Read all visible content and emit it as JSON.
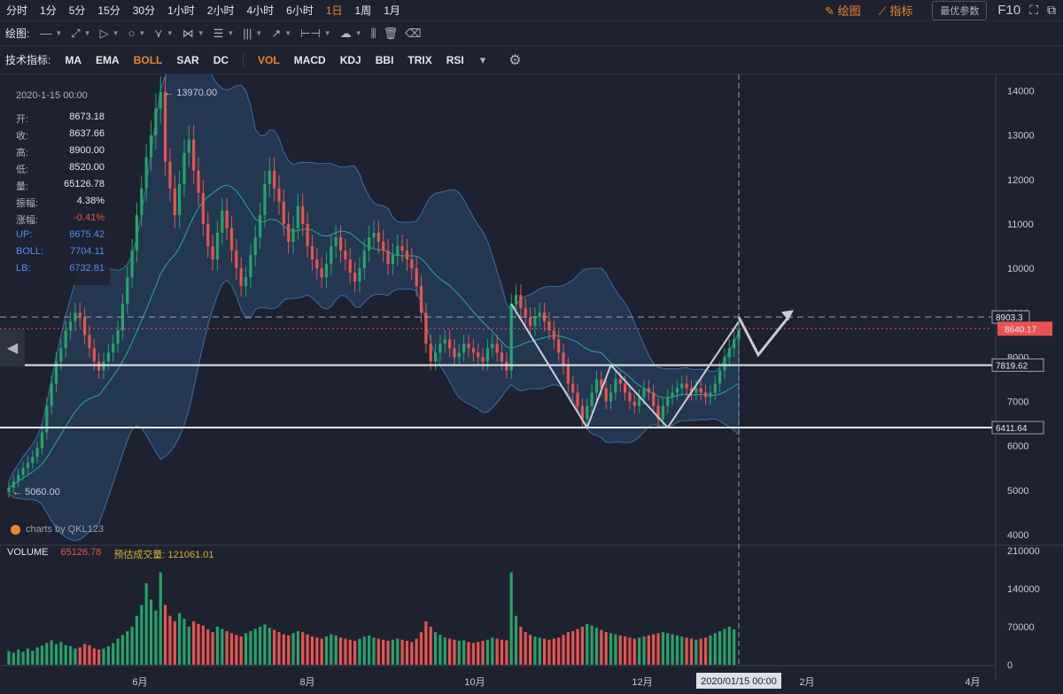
{
  "toolbar": {
    "timeframes": [
      "分时",
      "1分",
      "5分",
      "15分",
      "30分",
      "1小时",
      "2小时",
      "4小时",
      "6小时",
      "1日",
      "1周",
      "1月"
    ],
    "active_timeframe": "1日",
    "draw_label": "绘图",
    "indicator_label": "指标",
    "param_button": "最优参数",
    "f10": "F10"
  },
  "drawbar": {
    "label": "绘图:"
  },
  "indicators": {
    "label": "技术指标:",
    "main": [
      "MA",
      "EMA",
      "BOLL",
      "SAR",
      "DC"
    ],
    "sub": [
      "VOL",
      "MACD",
      "KDJ",
      "BBI",
      "TRIX",
      "RSI"
    ],
    "active_main": "BOLL",
    "active_sub": "VOL"
  },
  "info": {
    "time": "2020-1-15 00:00",
    "rows": [
      {
        "k": "开:",
        "v": "8673.18"
      },
      {
        "k": "收:",
        "v": "8637.66"
      },
      {
        "k": "高:",
        "v": "8900.00"
      },
      {
        "k": "低:",
        "v": "8520.00"
      },
      {
        "k": "量:",
        "v": "65126.78"
      },
      {
        "k": "振幅:",
        "v": "4.38%"
      },
      {
        "k": "涨幅:",
        "v": "-0.41%"
      },
      {
        "k": "UP:",
        "v": "8675.42"
      },
      {
        "k": "BOLL:",
        "v": "7704.11"
      },
      {
        "k": "LB:",
        "v": "6732.81"
      }
    ]
  },
  "watermark": "charts by QKL123",
  "volume": {
    "label": "VOLUME",
    "value": "65126.78",
    "est_label": "预估成交量:",
    "est_value": "121061.01"
  },
  "chart_data": {
    "type": "candlestick",
    "price_axis": {
      "ticks": [
        4000,
        5000,
        6000,
        7000,
        8000,
        9000,
        10000,
        11000,
        12000,
        13000,
        14000
      ],
      "range": [
        3800,
        14250
      ]
    },
    "volume_axis": {
      "ticks": [
        0,
        70000,
        140000,
        210000
      ],
      "range": [
        0,
        210000
      ]
    },
    "x_labels": [
      "6月",
      "8月",
      "10月",
      "12月",
      "2月",
      "4月"
    ],
    "crosshair_date": "2020/01/15 00:00",
    "annotations": {
      "high": "13970.00",
      "low": "5060.00"
    },
    "hlines": [
      {
        "value": 8903.3,
        "label": "8903.3",
        "style": "dashed"
      },
      {
        "value": 8640.17,
        "label": "8640.17",
        "style": "current"
      },
      {
        "value": 7819.62,
        "label": "7819.62",
        "style": "solid"
      },
      {
        "value": 6411.64,
        "label": "6411.64",
        "style": "solid"
      }
    ],
    "colors": {
      "up": "#27a36a",
      "down": "#e9534f",
      "boll_band": "#2f5f8f",
      "boll_mid": "#2aa8a0",
      "bg": "#1e2230"
    },
    "closes": [
      5060,
      5200,
      5350,
      5500,
      5620,
      5750,
      5950,
      6300,
      6900,
      7400,
      7900,
      8200,
      8600,
      8800,
      9000,
      8900,
      8500,
      8200,
      7900,
      7700,
      7900,
      8100,
      8300,
      8600,
      9200,
      9800,
      10400,
      11200,
      11800,
      12500,
      13000,
      13600,
      13970,
      12400,
      11800,
      11200,
      11900,
      12600,
      12900,
      12200,
      11700,
      11000,
      10500,
      10200,
      10800,
      11300,
      10900,
      10400,
      10000,
      9600,
      9800,
      10300,
      10700,
      11200,
      11900,
      12200,
      11800,
      11500,
      11000,
      10600,
      10900,
      11400,
      11000,
      10500,
      10200,
      10000,
      9800,
      10100,
      10500,
      10700,
      10400,
      10200,
      9900,
      9700,
      10000,
      10400,
      10700,
      10800,
      10600,
      10400,
      10100,
      10300,
      10500,
      10400,
      10200,
      10000,
      9600,
      9000,
      8300,
      7900,
      8100,
      8300,
      8400,
      8200,
      8000,
      8100,
      8300,
      8200,
      8100,
      8000,
      7900,
      8200,
      8300,
      8100,
      7900,
      7700,
      9200,
      9400,
      9100,
      8900,
      8700,
      8900,
      9000,
      8800,
      8600,
      8400,
      8100,
      7800,
      7400,
      7200,
      6900,
      6600,
      6900,
      7200,
      7500,
      7300,
      7000,
      7200,
      7500,
      7400,
      7200,
      7000,
      6900,
      7100,
      7300,
      7200,
      6900,
      6600,
      6900,
      7100,
      7200,
      7300,
      7400,
      7300,
      7200,
      7300,
      7200,
      7100,
      7200,
      7400,
      7700,
      8000,
      8200,
      8400,
      8640
    ],
    "volumes": [
      25000,
      22000,
      28000,
      24000,
      30000,
      26000,
      32000,
      35000,
      40000,
      45000,
      38000,
      42000,
      36000,
      34000,
      30000,
      32000,
      38000,
      36000,
      30000,
      28000,
      30000,
      34000,
      40000,
      48000,
      55000,
      62000,
      70000,
      90000,
      110000,
      150000,
      120000,
      100000,
      170000,
      110000,
      90000,
      80000,
      95000,
      85000,
      70000,
      80000,
      75000,
      72000,
      65000,
      60000,
      70000,
      66000,
      62000,
      58000,
      55000,
      52000,
      58000,
      62000,
      66000,
      70000,
      74000,
      68000,
      64000,
      60000,
      56000,
      54000,
      58000,
      62000,
      60000,
      56000,
      52000,
      50000,
      48000,
      52000,
      56000,
      54000,
      50000,
      48000,
      46000,
      44000,
      48000,
      52000,
      54000,
      50000,
      48000,
      46000,
      44000,
      46000,
      48000,
      46000,
      44000,
      42000,
      48000,
      60000,
      80000,
      70000,
      60000,
      55000,
      50000,
      48000,
      46000,
      44000,
      45000,
      42000,
      40000,
      42000,
      44000,
      46000,
      50000,
      48000,
      46000,
      45000,
      170000,
      90000,
      70000,
      60000,
      55000,
      52000,
      50000,
      48000,
      46000,
      48000,
      50000,
      55000,
      60000,
      62000,
      66000,
      70000,
      75000,
      72000,
      68000,
      64000,
      60000,
      58000,
      56000,
      54000,
      52000,
      50000,
      48000,
      50000,
      52000,
      54000,
      56000,
      58000,
      60000,
      58000,
      56000,
      54000,
      52000,
      50000,
      48000,
      46000,
      48000,
      50000,
      54000,
      58000,
      62000,
      66000,
      70000,
      65126
    ],
    "projection": [
      8900,
      8050,
      8900
    ]
  }
}
